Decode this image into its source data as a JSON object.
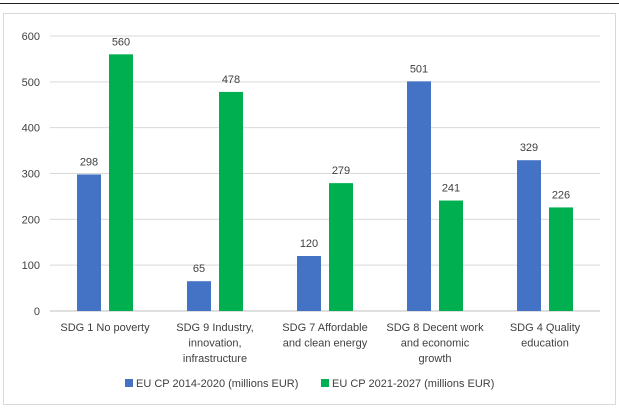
{
  "chart_data": {
    "type": "bar",
    "categories": [
      [
        "SDG 1 No poverty"
      ],
      [
        "SDG 9 Industry,",
        "innovation,",
        "infrastructure"
      ],
      [
        "SDG 7 Affordable",
        "and clean energy"
      ],
      [
        "SDG 8 Decent work",
        "and economic",
        "growth"
      ],
      [
        "SDG 4 Quality",
        "education"
      ]
    ],
    "series": [
      {
        "name": "EU CP 2014-2020 (millions EUR)",
        "values": [
          298,
          65,
          120,
          501,
          329
        ],
        "color": "#4472c4"
      },
      {
        "name": "EU CP 2021-2027 (millions EUR)",
        "values": [
          560,
          478,
          279,
          241,
          226
        ],
        "color": "#00b050"
      }
    ],
    "yticks": [
      "0",
      "100",
      "200",
      "300",
      "400",
      "500",
      "600"
    ],
    "ylim": [
      0,
      600
    ],
    "grid": true,
    "legend_position": "bottom"
  }
}
